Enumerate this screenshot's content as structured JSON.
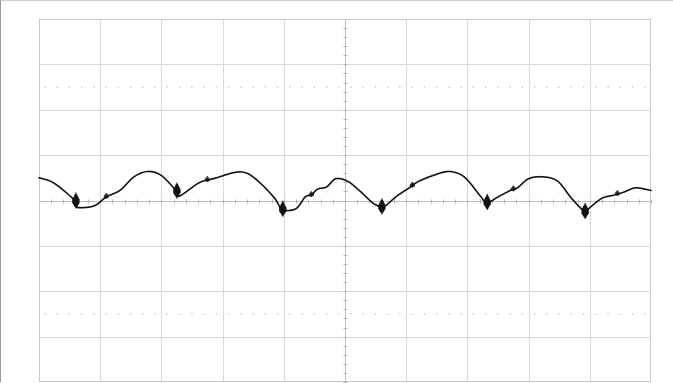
{
  "chart_data": {
    "type": "line",
    "title": "",
    "xlabel": "",
    "ylabel": "",
    "grid": true,
    "divisions": {
      "x": 10,
      "y": 8
    },
    "xlim": [
      0,
      10
    ],
    "ylim": [
      -4,
      4
    ],
    "colors": {
      "trace": "#111111",
      "grid": "#d8d8d8",
      "background": "#ffffff"
    },
    "series": [
      {
        "x": [
          0.0,
          0.25,
          0.6,
          0.62,
          0.9,
          1.1,
          1.32,
          1.55,
          1.77,
          2.0,
          2.25,
          2.3,
          2.6,
          2.75,
          2.9,
          3.2,
          3.4,
          3.62,
          3.85,
          3.98,
          4.2,
          4.35,
          4.45,
          4.55,
          4.7,
          4.85,
          5.05,
          5.25,
          5.45,
          5.6,
          5.65,
          5.85,
          6.05,
          6.2,
          6.5,
          6.72,
          6.95,
          7.2,
          7.32,
          7.5,
          7.7,
          7.82,
          8.0,
          8.25,
          8.48,
          8.7,
          8.92,
          8.98,
          9.2,
          9.4,
          9.55,
          9.75,
          10.0
        ],
        "y": [
          0.5,
          0.38,
          -0.02,
          -0.15,
          -0.12,
          0.08,
          0.22,
          0.52,
          0.64,
          0.55,
          0.2,
          0.1,
          0.38,
          0.45,
          0.5,
          0.62,
          0.6,
          0.38,
          0.05,
          -0.2,
          -0.18,
          0.08,
          0.12,
          0.25,
          0.3,
          0.48,
          0.42,
          0.2,
          -0.05,
          -0.15,
          -0.13,
          0.1,
          0.28,
          0.42,
          0.58,
          0.64,
          0.52,
          0.12,
          -0.05,
          0.08,
          0.22,
          0.28,
          0.48,
          0.52,
          0.42,
          0.05,
          -0.25,
          -0.18,
          0.05,
          0.12,
          0.18,
          0.28,
          0.22
        ]
      }
    ],
    "switching_bursts_at_x": [
      0.6,
      2.25,
      3.98,
      5.6,
      7.32,
      8.92
    ],
    "small_bumps_at_x": [
      1.1,
      2.75,
      4.45,
      6.1,
      7.75,
      9.45
    ]
  }
}
